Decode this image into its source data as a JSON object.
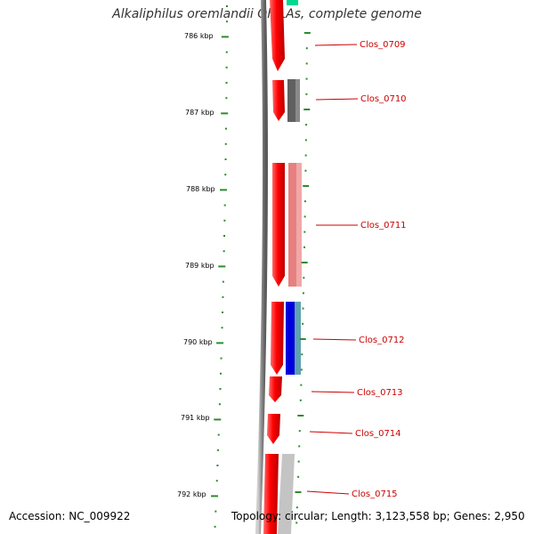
{
  "title": "Alkaliphilus oremlandii OhILAs, complete genome",
  "accession": "Accession: NC_009922",
  "topology": "Topology: circular; Length: 3,123,558 bp; Genes: 2,950",
  "kbp_labels": [
    "786 kbp",
    "787 kbp",
    "788 kbp",
    "789 kbp",
    "790 kbp",
    "791 kbp",
    "792 kbp"
  ],
  "gene_labels": [
    "Clos_0709",
    "Clos_0710",
    "Clos_0711",
    "Clos_0712",
    "Clos_0713",
    "Clos_0714",
    "Clos_0715"
  ],
  "colors": {
    "backbone": "#808080",
    "tick": "#2e8b2e",
    "cds": "#ff0000",
    "label": "#cc0000",
    "leader": "#cc0000",
    "blast_gray": "#606060",
    "blast_pink": "#e88080",
    "blast_blue": "#0000dd",
    "blast_teal": "#5fa0b0",
    "blast_lightgray": "#c0c0c0",
    "blast_green": "#00d890"
  }
}
